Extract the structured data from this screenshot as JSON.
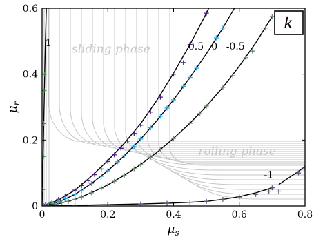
{
  "chart_data": {
    "type": "line",
    "xlabel_base": "μ",
    "xlabel_sub": "s",
    "ylabel_base": "μ",
    "ylabel_sub": "r",
    "xlim": [
      0,
      0.8
    ],
    "ylim": [
      0,
      0.6
    ],
    "xticks": [
      0,
      0.2,
      0.4,
      0.6,
      0.8
    ],
    "xtick_labels": [
      "0",
      "0.2",
      "0.4",
      "0.6",
      "0.8"
    ],
    "yticks": [
      0,
      0.2,
      0.4,
      0.6
    ],
    "ytick_labels": [
      "0",
      "0.2",
      "0.4",
      "0.6"
    ],
    "panel_label": "k",
    "annotations": [
      {
        "text": "sliding phase",
        "x": 0.09,
        "y": 0.465
      },
      {
        "text": "rolling phase",
        "x": 0.475,
        "y": 0.155
      }
    ],
    "curves": [
      {
        "label": "1",
        "label_x": 0.01,
        "label_y": 0.485,
        "x": [
          0,
          0.002,
          0.004,
          0.006,
          0.008,
          0.01,
          0.013
        ],
        "y": [
          0,
          0.1,
          0.2,
          0.3,
          0.4,
          0.5,
          0.6
        ]
      },
      {
        "label": "0.5",
        "label_x": 0.445,
        "label_y": 0.475,
        "x": [
          0,
          0.05,
          0.1,
          0.15,
          0.2,
          0.25,
          0.3,
          0.35,
          0.4,
          0.45,
          0.5,
          0.55
        ],
        "y": [
          0,
          0.018,
          0.048,
          0.09,
          0.138,
          0.19,
          0.25,
          0.322,
          0.403,
          0.49,
          0.585,
          0.69
        ]
      },
      {
        "label": "0",
        "label_x": 0.515,
        "label_y": 0.475,
        "x": [
          0,
          0.05,
          0.1,
          0.15,
          0.2,
          0.25,
          0.3,
          0.35,
          0.4,
          0.45,
          0.5,
          0.55,
          0.6
        ],
        "y": [
          0,
          0.012,
          0.035,
          0.068,
          0.107,
          0.152,
          0.203,
          0.26,
          0.322,
          0.39,
          0.462,
          0.54,
          0.625
        ]
      },
      {
        "label": "-0.5",
        "label_x": 0.56,
        "label_y": 0.475,
        "x": [
          0,
          0.05,
          0.1,
          0.15,
          0.2,
          0.25,
          0.3,
          0.35,
          0.4,
          0.45,
          0.5,
          0.55,
          0.6,
          0.65,
          0.7
        ],
        "y": [
          0,
          0.007,
          0.02,
          0.04,
          0.064,
          0.093,
          0.126,
          0.163,
          0.205,
          0.251,
          0.303,
          0.36,
          0.424,
          0.495,
          0.575
        ]
      },
      {
        "label": "-1",
        "label_x": 0.675,
        "label_y": 0.085,
        "x": [
          0,
          0.1,
          0.2,
          0.3,
          0.4,
          0.45,
          0.5,
          0.55,
          0.6,
          0.65,
          0.7
        ],
        "y": [
          0,
          0.002,
          0.004,
          0.006,
          0.009,
          0.011,
          0.014,
          0.02,
          0.028,
          0.04,
          0.055
        ]
      },
      {
        "label": "",
        "label_x": 0,
        "label_y": 0,
        "x": [
          0.72,
          0.75,
          0.78,
          0.8
        ],
        "y": [
          0.065,
          0.085,
          0.105,
          0.12
        ]
      }
    ],
    "markers": [
      {
        "color": "#4b1f7a",
        "points": [
          [
            0.01,
            0.005
          ],
          [
            0.03,
            0.012
          ],
          [
            0.05,
            0.02
          ],
          [
            0.07,
            0.03
          ],
          [
            0.1,
            0.048
          ],
          [
            0.12,
            0.062
          ],
          [
            0.14,
            0.077
          ],
          [
            0.16,
            0.095
          ],
          [
            0.18,
            0.112
          ],
          [
            0.2,
            0.135
          ],
          [
            0.22,
            0.155
          ],
          [
            0.24,
            0.175
          ],
          [
            0.26,
            0.197
          ],
          [
            0.28,
            0.22
          ],
          [
            0.3,
            0.245
          ],
          [
            0.33,
            0.285
          ],
          [
            0.36,
            0.33
          ],
          [
            0.4,
            0.4
          ],
          [
            0.43,
            0.435
          ],
          [
            0.45,
            0.49
          ],
          [
            0.5,
            0.585
          ]
        ]
      },
      {
        "color": "#2ba6dc",
        "points": [
          [
            0.01,
            0.003
          ],
          [
            0.03,
            0.008
          ],
          [
            0.05,
            0.013
          ],
          [
            0.07,
            0.022
          ],
          [
            0.1,
            0.035
          ],
          [
            0.12,
            0.046
          ],
          [
            0.15,
            0.068
          ],
          [
            0.18,
            0.09
          ],
          [
            0.2,
            0.107
          ],
          [
            0.23,
            0.134
          ],
          [
            0.25,
            0.152
          ],
          [
            0.28,
            0.18
          ],
          [
            0.3,
            0.203
          ],
          [
            0.33,
            0.237
          ],
          [
            0.36,
            0.272
          ],
          [
            0.38,
            0.297
          ],
          [
            0.4,
            0.322
          ],
          [
            0.43,
            0.363
          ],
          [
            0.45,
            0.39
          ],
          [
            0.47,
            0.418
          ],
          [
            0.53,
            0.51
          ],
          [
            0.55,
            0.54
          ]
        ]
      },
      {
        "color": "#6e8a6e",
        "points": [
          [
            0.005,
            0.001
          ],
          [
            0.02,
            0.003
          ],
          [
            0.04,
            0.006
          ],
          [
            0.06,
            0.01
          ],
          [
            0.08,
            0.014
          ],
          [
            0.1,
            0.02
          ],
          [
            0.12,
            0.027
          ],
          [
            0.15,
            0.04
          ],
          [
            0.18,
            0.054
          ],
          [
            0.2,
            0.064
          ],
          [
            0.22,
            0.075
          ],
          [
            0.25,
            0.093
          ],
          [
            0.28,
            0.113
          ],
          [
            0.3,
            0.126
          ],
          [
            0.33,
            0.148
          ],
          [
            0.36,
            0.172
          ],
          [
            0.4,
            0.205
          ],
          [
            0.45,
            0.251
          ],
          [
            0.48,
            0.28
          ],
          [
            0.5,
            0.303
          ],
          [
            0.55,
            0.36
          ],
          [
            0.58,
            0.395
          ],
          [
            0.62,
            0.45
          ],
          [
            0.64,
            0.47
          ],
          [
            0.68,
            0.54
          ],
          [
            0.7,
            0.575
          ]
        ]
      },
      {
        "color": "#5a5a7a",
        "points": [
          [
            0.1,
            0.002
          ],
          [
            0.2,
            0.004
          ],
          [
            0.3,
            0.006
          ],
          [
            0.38,
            0.008
          ],
          [
            0.45,
            0.011
          ],
          [
            0.5,
            0.014
          ],
          [
            0.55,
            0.02
          ],
          [
            0.6,
            0.027
          ],
          [
            0.65,
            0.035
          ],
          [
            0.69,
            0.045
          ],
          [
            0.7,
            0.055
          ],
          [
            0.72,
            0.045
          ],
          [
            0.78,
            0.1
          ],
          [
            0.8,
            0.115
          ]
        ]
      },
      {
        "color": "#3c8c3c",
        "points": [
          [
            0.002,
            0.05
          ],
          [
            0.004,
            0.15
          ],
          [
            0.005,
            0.25
          ],
          [
            0.006,
            0.35
          ],
          [
            0.007,
            0.4
          ]
        ]
      }
    ],
    "background_contours": "grey iso-lines"
  }
}
